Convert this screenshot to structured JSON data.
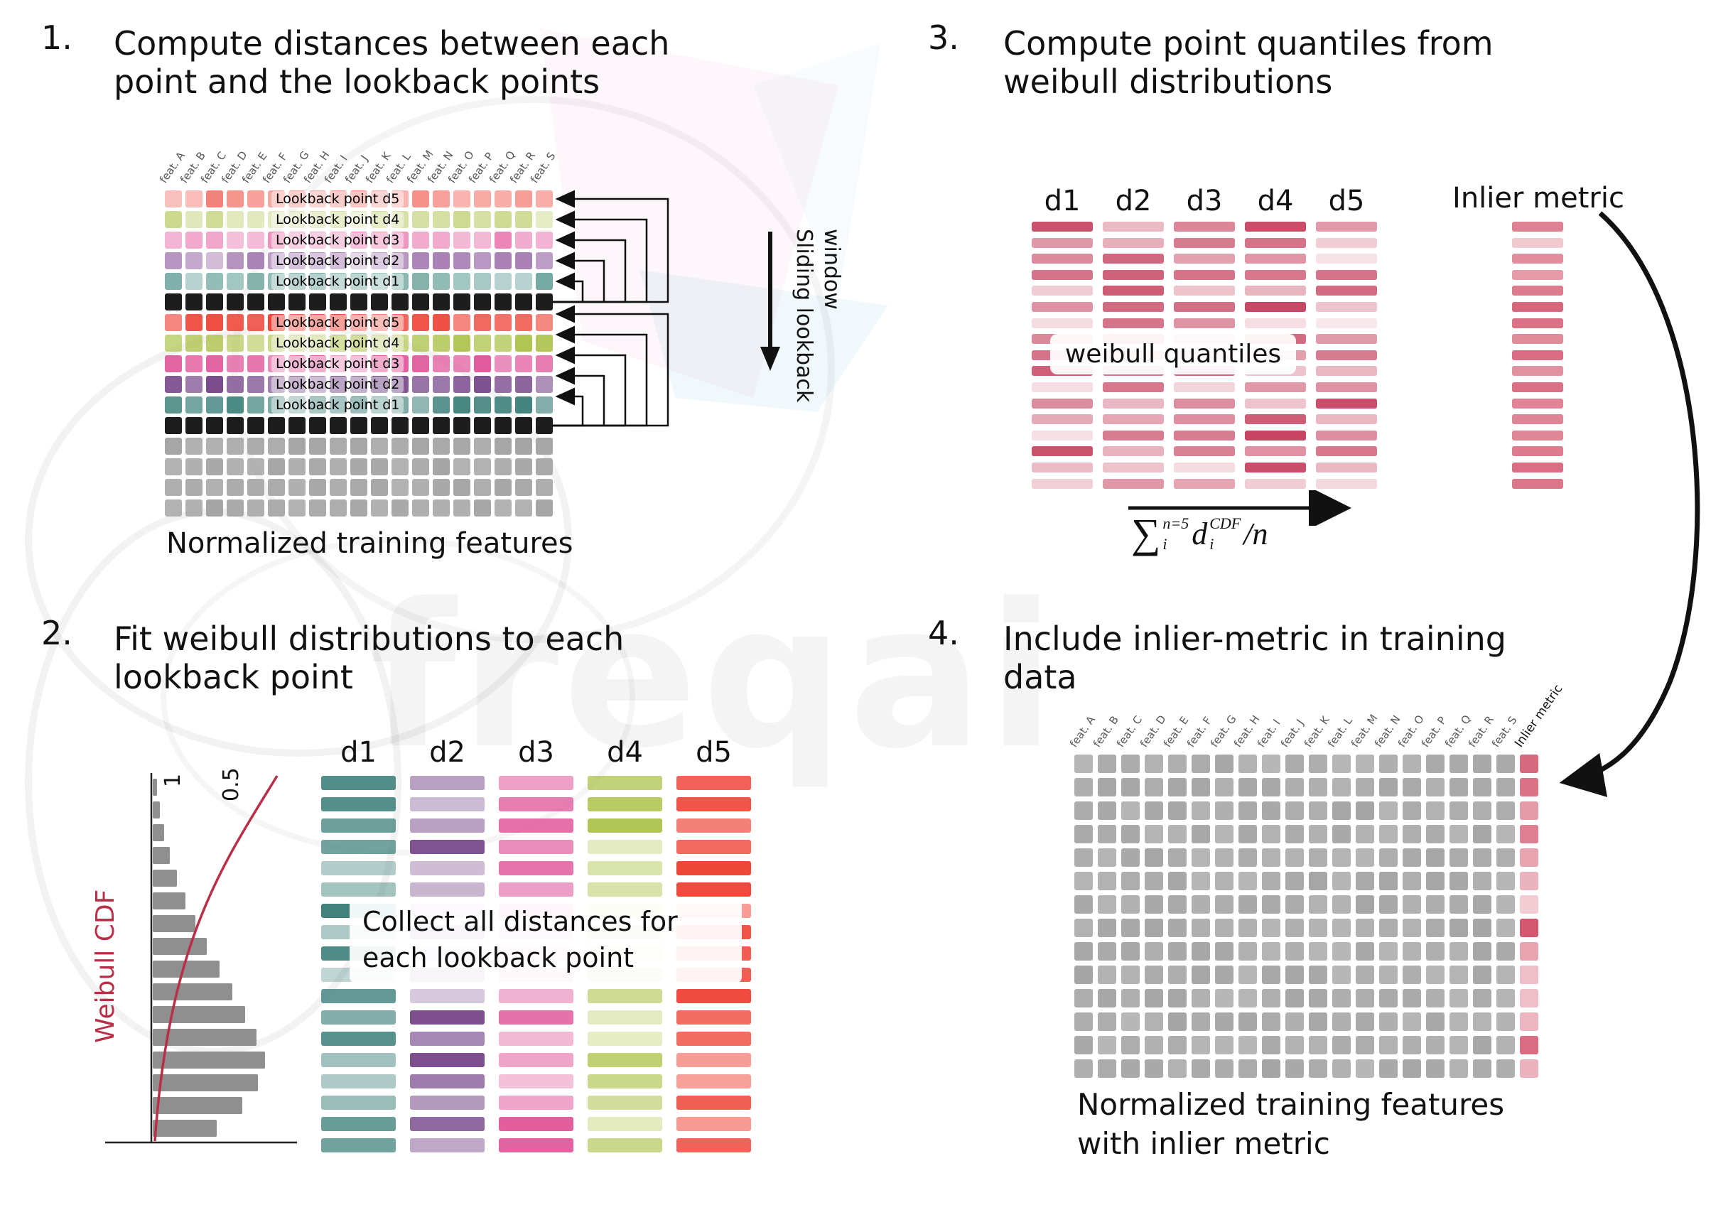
{
  "watermark": {
    "text": "freqai"
  },
  "colors": {
    "palette_light": {
      "d5": "#f4817a",
      "d4": "#cdd98f",
      "d3": "#ea82b4",
      "d2": "#a87fb4",
      "d1": "#72a8a0"
    },
    "palette_strong": {
      "d5": "#ef4438",
      "d4": "#a9bf41",
      "d3": "#e0559a",
      "d2": "#7a4b8d",
      "d1": "#41837c"
    },
    "black_row": "#1d1d1d",
    "gray_cell": "#a5a5a5",
    "quantile_bar": "#c74562",
    "inlier_bar": "#d14e66",
    "weibull_curve": "#b92f47",
    "hist_bar": "#8f8f8f",
    "arrow": "#111111"
  },
  "feature_labels": [
    "feat. A",
    "feat. B",
    "feat. C",
    "feat. D",
    "feat. E",
    "feat. F",
    "feat. G",
    "feat. H",
    "feat. I",
    "feat. J",
    "feat. K",
    "feat. L",
    "feat. M",
    "feat. N",
    "feat. O",
    "feat. P",
    "feat. Q",
    "feat. R",
    "feat. S"
  ],
  "panel1": {
    "number": "1.",
    "title_line1": "Compute distances between each",
    "title_line2": "point and the lookback points",
    "lookback_labels": [
      "Lookback point d5",
      "Lookback point d4",
      "Lookback point d3",
      "Lookback point d2",
      "Lookback point d1"
    ],
    "sliding_label_line1": "Sliding lookback",
    "sliding_label_line2": "window",
    "caption": "Normalized training features",
    "gray_rows": 4
  },
  "panel2": {
    "number": "2.",
    "title_line1": "Fit weibull distributions to each",
    "title_line2": "lookback point",
    "col_headers": [
      "d1",
      "d2",
      "d3",
      "d4",
      "d5"
    ],
    "overlay_line1": "Collect all distances for",
    "overlay_line2": "each lookback point",
    "plot": {
      "ylabel": "Weibull CDF",
      "tick_1": "1",
      "tick_05": "0.5",
      "hist": [
        6,
        10,
        16,
        24,
        34,
        46,
        60,
        76,
        94,
        112,
        130,
        146,
        158,
        148,
        126,
        90
      ]
    },
    "bars_per_col": 18
  },
  "panel3": {
    "number": "3.",
    "title_line1": "Compute point quantiles from",
    "title_line2": "weibull distributions",
    "col_headers": [
      "d1",
      "d2",
      "d3",
      "d4",
      "d5"
    ],
    "overlay": "weibull quantiles",
    "inlier_label": "Inlier metric",
    "bars_per_col": 17,
    "formula": {
      "sum": "∑",
      "sum_sup": "n=5",
      "sum_sub": "i",
      "term": "d",
      "term_sup": "CDF",
      "term_sub": "i",
      "tail": "/n"
    }
  },
  "panel4": {
    "number": "4.",
    "title_line1": "Include inlier-metric in training",
    "title_line2": "data",
    "inlier_col_label": "Inlier metric",
    "caption_line1": "Normalized training features",
    "caption_line2": "with inlier metric",
    "grid_rows": 14,
    "grid_cols": 20
  }
}
